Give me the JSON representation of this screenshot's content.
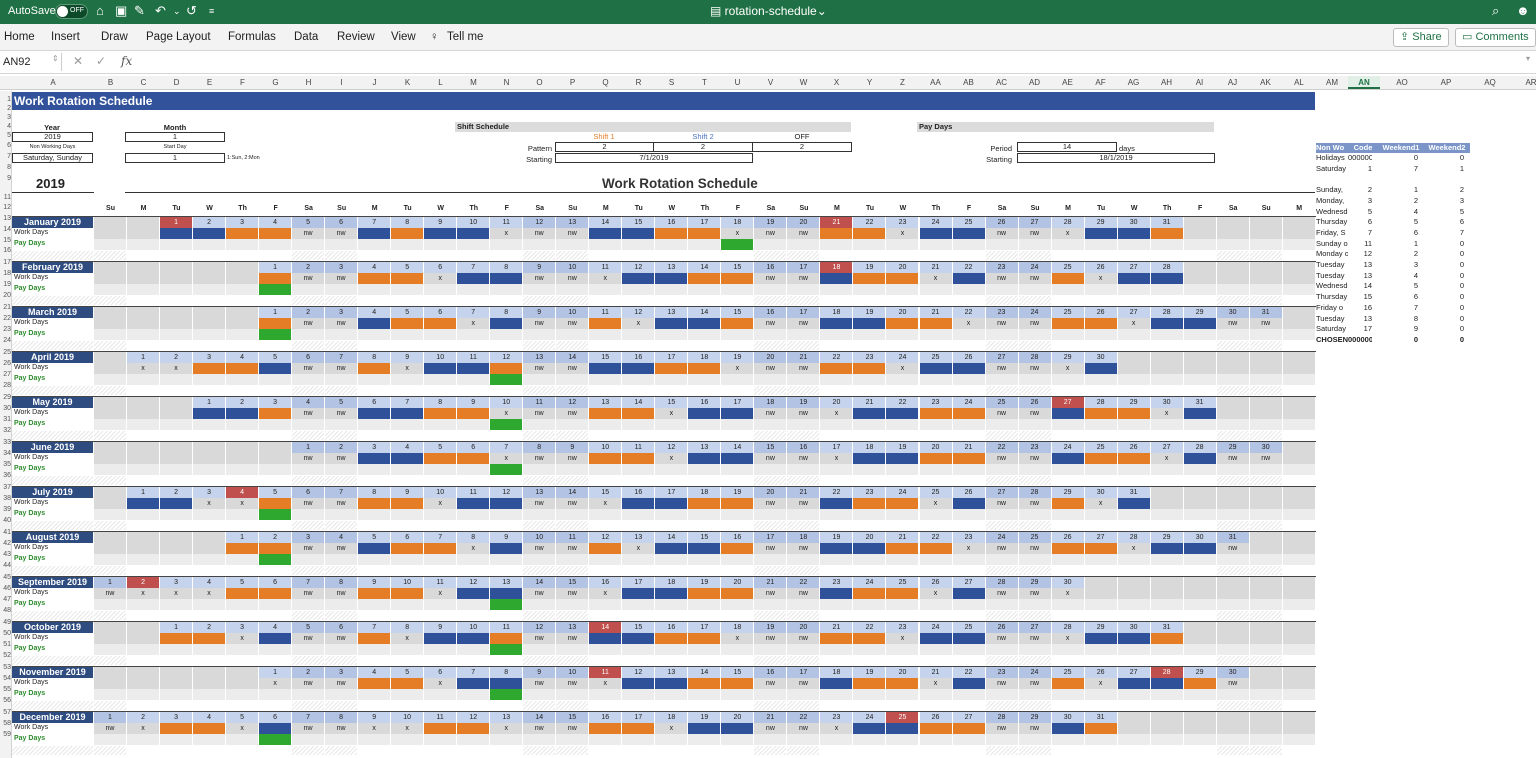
{
  "titlebar": {
    "autosave": "AutoSave",
    "toggle": "OFF",
    "doc_title": "rotation-schedule",
    "doc_chevron": "⌄"
  },
  "ribbon": {
    "tabs": [
      "Home",
      "Insert",
      "Draw",
      "Page Layout",
      "Formulas",
      "Data",
      "Review",
      "View",
      "Tell me"
    ],
    "share": "Share",
    "comments": "Comments"
  },
  "formula_bar": {
    "name_box": "AN92",
    "fx": "fx",
    "value": ""
  },
  "columns": [
    "A",
    "B",
    "C",
    "D",
    "E",
    "F",
    "G",
    "H",
    "I",
    "J",
    "K",
    "L",
    "M",
    "N",
    "O",
    "P",
    "Q",
    "R",
    "S",
    "T",
    "U",
    "V",
    "W",
    "X",
    "Y",
    "Z",
    "AA",
    "AB",
    "AC",
    "AD",
    "AE",
    "AF",
    "AG",
    "AH",
    "AI",
    "AJ",
    "AK",
    "AL",
    "AM",
    "AN",
    "AO",
    "AP",
    "AQ",
    "AR"
  ],
  "rows": [
    "1",
    "2",
    "3",
    "4",
    "5",
    "6",
    "7",
    "8",
    "9",
    "11",
    "12",
    "13",
    "14",
    "15",
    "16",
    "17",
    "18",
    "19",
    "20",
    "21",
    "22",
    "23",
    "24",
    "25",
    "26",
    "27",
    "28",
    "29",
    "30",
    "31",
    "32",
    "33",
    "34",
    "35",
    "36",
    "37",
    "38",
    "39",
    "40",
    "41",
    "42",
    "43",
    "44",
    "45",
    "46",
    "47",
    "48",
    "49",
    "50",
    "51",
    "52",
    "53",
    "54",
    "55",
    "56",
    "57",
    "58",
    "59"
  ],
  "header": {
    "banner": "Work Rotation Schedule",
    "year_label": "Year",
    "year_value": "2019",
    "month_label": "Month",
    "month_value": "1",
    "nonwork_label": "Non Working Days",
    "nonwork_value": "Saturday, Sunday",
    "startday_label": "Start Day",
    "startday_value": "1",
    "startday_hint": "1:Sun, 2:Mon",
    "shift_schedule": "Shift Schedule",
    "shift1": "Shift 1",
    "shift2": "Shift 2",
    "off": "OFF",
    "pattern_label": "Pattern",
    "pattern1": "2",
    "pattern2": "2",
    "pattern3": "2",
    "starting_label": "Starting",
    "starting_value": "7/1/2019",
    "paydays": "Pay Days",
    "period_label": "Period",
    "period_value": "14",
    "period_unit": "days",
    "pay_starting_label": "Starting",
    "pay_starting_value": "18/1/2019",
    "big_year": "2019",
    "big_title": "Work Rotation Schedule"
  },
  "dow": [
    "Su",
    "M",
    "Tu",
    "W",
    "Th",
    "F",
    "Sa",
    "Su",
    "M",
    "Tu",
    "W",
    "Th",
    "F",
    "Sa",
    "Su",
    "M",
    "Tu",
    "W",
    "Th",
    "F",
    "Sa",
    "Su",
    "M",
    "Tu",
    "W",
    "Th",
    "F",
    "Sa",
    "Su",
    "M",
    "Tu",
    "W",
    "Th",
    "F",
    "Sa",
    "Su",
    "M"
  ],
  "labels": {
    "work": "Work Days",
    "pay": "Pay Days"
  },
  "colors": {
    "shift1": "#e47d26",
    "shift2": "#2f519a",
    "payday": "#2ea82e",
    "holiday": "#c0504d",
    "banner": "#32539b"
  },
  "months": [
    {
      "name": "January 2019",
      "start": 2,
      "days": 31,
      "hol": [
        1,
        21
      ],
      "work": "bbooxbbobbxxobbooxbbooxbbooxbbo",
      "payday": 18
    },
    {
      "name": "February 2019",
      "start": 5,
      "days": 28,
      "hol": [
        18
      ],
      "work": "obbooxbbooxbbooxbbooxbbooxbb",
      "payday": 1
    },
    {
      "name": "March 2019",
      "start": 5,
      "days": 31,
      "hol": [],
      "work": "oxbbooxbbooxbbooxbbooxbbooxbbox",
      "payday": 1
    },
    {
      "name": "April 2019",
      "start": 1,
      "days": 30,
      "hol": [],
      "work": "xxoobbooxbbooxbbooxbbooxbbooxb",
      "payday": 12
    },
    {
      "name": "May 2019",
      "start": 3,
      "days": 31,
      "hol": [
        27
      ],
      "work": "bbooxbbooxbbooxbbooxbbooxbbooxb",
      "payday": 10
    },
    {
      "name": "June 2019",
      "start": 6,
      "days": 30,
      "hol": [],
      "work": "oxbbooxbbooxbbooxbbooxbbooxbbo",
      "payday": 7
    },
    {
      "name": "July 2019",
      "start": 1,
      "days": 31,
      "hol": [
        4
      ],
      "work": "bbxxobbooxbbooxbbooxbbooxbbooxb",
      "payday": 5
    },
    {
      "name": "August 2019",
      "start": 4,
      "days": 31,
      "hol": [],
      "work": "ooxbbooxbbooxbbooxbbooxbbooxbbo",
      "payday": 2
    },
    {
      "name": "September 2019",
      "start": 0,
      "days": 30,
      "hol": [
        2
      ],
      "work": "xxxxoobbooxbbooxbbooxbbooxbbox",
      "payday": 13
    },
    {
      "name": "October 2019",
      "start": 2,
      "days": 31,
      "hol": [
        14
      ],
      "work": "ooxbbooxbbooxbbooxbbooxbbooxbbo",
      "payday": 11
    },
    {
      "name": "November 2019",
      "start": 5,
      "days": 30,
      "hol": [
        11,
        28
      ],
      "work": "xxbooxbbooxbbooxbbooxbbooxbboo",
      "payday": 8
    },
    {
      "name": "December 2019",
      "start": 0,
      "days": 31,
      "hol": [
        25
      ],
      "work": "xxooxbboxxooxbbooxbbooxbbooxbbo",
      "payday": 6
    }
  ],
  "side_table": {
    "headers": [
      "Non Wo",
      "Code",
      "Weekend1",
      "Weekend2"
    ],
    "rows": [
      [
        "Holidays",
        "0000000",
        "0",
        "0"
      ],
      [
        "Saturday",
        "1",
        "7",
        "1"
      ],
      [
        "",
        "",
        "",
        ""
      ],
      [
        "Sunday,",
        "2",
        "1",
        "2"
      ],
      [
        "Monday,",
        "3",
        "2",
        "3"
      ],
      [
        "Wednesd",
        "5",
        "4",
        "5"
      ],
      [
        "Thursday",
        "6",
        "5",
        "6"
      ],
      [
        "Friday, S",
        "7",
        "6",
        "7"
      ],
      [
        "Sunday o",
        "11",
        "1",
        "0"
      ],
      [
        "Monday o",
        "12",
        "2",
        "0"
      ],
      [
        "Tuesday",
        "13",
        "3",
        "0"
      ],
      [
        "Tuesday",
        "13",
        "4",
        "0"
      ],
      [
        "Wednesd",
        "14",
        "5",
        "0"
      ],
      [
        "Thursday",
        "15",
        "6",
        "0"
      ],
      [
        "Friday o",
        "16",
        "7",
        "0"
      ],
      [
        "Tuesday",
        "13",
        "8",
        "0"
      ],
      [
        "Saturday",
        "17",
        "9",
        "0"
      ],
      [
        "CHOSEN",
        "0000000",
        "0",
        "0"
      ]
    ]
  }
}
